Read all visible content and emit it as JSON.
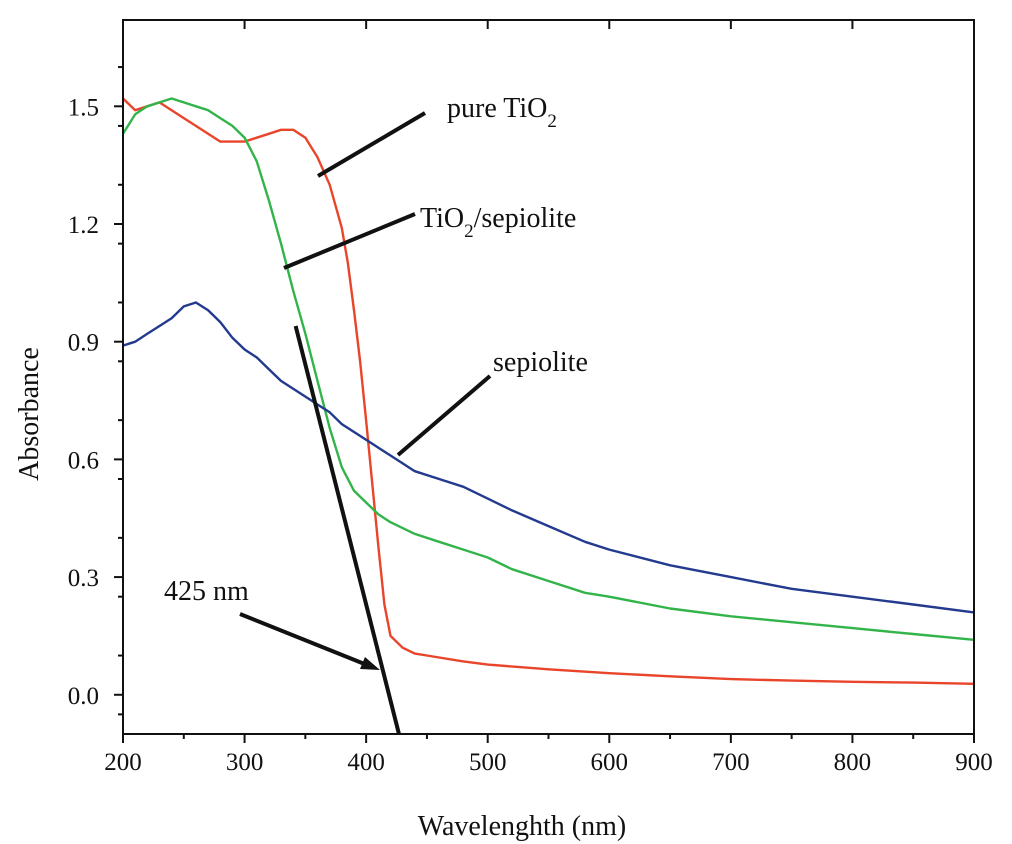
{
  "chart_data": {
    "type": "line",
    "xlabel": "Wavelenghth (nm)",
    "ylabel": "Absorbance",
    "xlim": [
      200,
      900
    ],
    "ylim": [
      -0.1,
      1.72
    ],
    "x_ticks": [
      200,
      300,
      400,
      500,
      600,
      700,
      800,
      900
    ],
    "x_tick_labels": [
      "200",
      "300",
      "400",
      "500",
      "600",
      "700",
      "800",
      "900"
    ],
    "y_ticks": [
      0.0,
      0.3,
      0.6,
      0.9,
      1.2,
      1.5
    ],
    "y_tick_labels": [
      "0.0",
      "0.3",
      "0.6",
      "0.9",
      "1.2",
      "1.5"
    ],
    "grid": false,
    "series": [
      {
        "name": "pure TiO2",
        "color": "#e8452a",
        "x": [
          200,
          210,
          220,
          230,
          240,
          250,
          260,
          270,
          280,
          290,
          300,
          310,
          320,
          330,
          340,
          350,
          360,
          370,
          380,
          385,
          390,
          395,
          400,
          405,
          410,
          415,
          420,
          430,
          440,
          450,
          460,
          480,
          500,
          550,
          600,
          650,
          700,
          750,
          800,
          850,
          900
        ],
        "y": [
          1.52,
          1.49,
          1.5,
          1.51,
          1.49,
          1.47,
          1.45,
          1.43,
          1.41,
          1.41,
          1.41,
          1.42,
          1.43,
          1.44,
          1.44,
          1.42,
          1.37,
          1.3,
          1.19,
          1.1,
          0.98,
          0.85,
          0.7,
          0.54,
          0.38,
          0.23,
          0.15,
          0.12,
          0.105,
          0.1,
          0.095,
          0.085,
          0.077,
          0.065,
          0.055,
          0.047,
          0.04,
          0.036,
          0.033,
          0.031,
          0.028
        ]
      },
      {
        "name": "TiO2/sepiolite",
        "color": "#33b44a",
        "x": [
          200,
          210,
          220,
          230,
          240,
          250,
          260,
          270,
          280,
          290,
          300,
          310,
          320,
          330,
          340,
          350,
          360,
          370,
          380,
          390,
          400,
          410,
          420,
          440,
          460,
          480,
          500,
          520,
          550,
          580,
          600,
          650,
          700,
          750,
          800,
          850,
          900
        ],
        "y": [
          1.43,
          1.48,
          1.5,
          1.51,
          1.52,
          1.51,
          1.5,
          1.49,
          1.47,
          1.45,
          1.42,
          1.36,
          1.26,
          1.15,
          1.03,
          0.92,
          0.8,
          0.68,
          0.58,
          0.52,
          0.49,
          0.46,
          0.44,
          0.41,
          0.39,
          0.37,
          0.35,
          0.32,
          0.29,
          0.26,
          0.25,
          0.22,
          0.2,
          0.185,
          0.17,
          0.155,
          0.14
        ]
      },
      {
        "name": "sepiolite",
        "color": "#233a8f",
        "x": [
          200,
          210,
          220,
          230,
          240,
          250,
          260,
          270,
          280,
          290,
          300,
          310,
          320,
          330,
          340,
          350,
          360,
          370,
          380,
          400,
          420,
          440,
          460,
          480,
          500,
          520,
          550,
          580,
          600,
          650,
          700,
          750,
          800,
          850,
          900
        ],
        "y": [
          0.89,
          0.9,
          0.92,
          0.94,
          0.96,
          0.99,
          1.0,
          0.98,
          0.95,
          0.91,
          0.88,
          0.86,
          0.83,
          0.8,
          0.78,
          0.76,
          0.74,
          0.72,
          0.69,
          0.65,
          0.61,
          0.57,
          0.55,
          0.53,
          0.5,
          0.47,
          0.43,
          0.39,
          0.37,
          0.33,
          0.3,
          0.27,
          0.25,
          0.23,
          0.21
        ]
      }
    ],
    "annotations": {
      "pure_tio2": {
        "main": "pure TiO",
        "sub": "2"
      },
      "tio2_sepiolite": {
        "main1": "TiO",
        "sub": "2",
        "main2": "/sepiolite"
      },
      "sepiolite": "sepiolite",
      "edge": "425 nm"
    },
    "edge_line": {
      "x": [
        342,
        427
      ],
      "y": [
        0.94,
        -0.1
      ]
    }
  }
}
